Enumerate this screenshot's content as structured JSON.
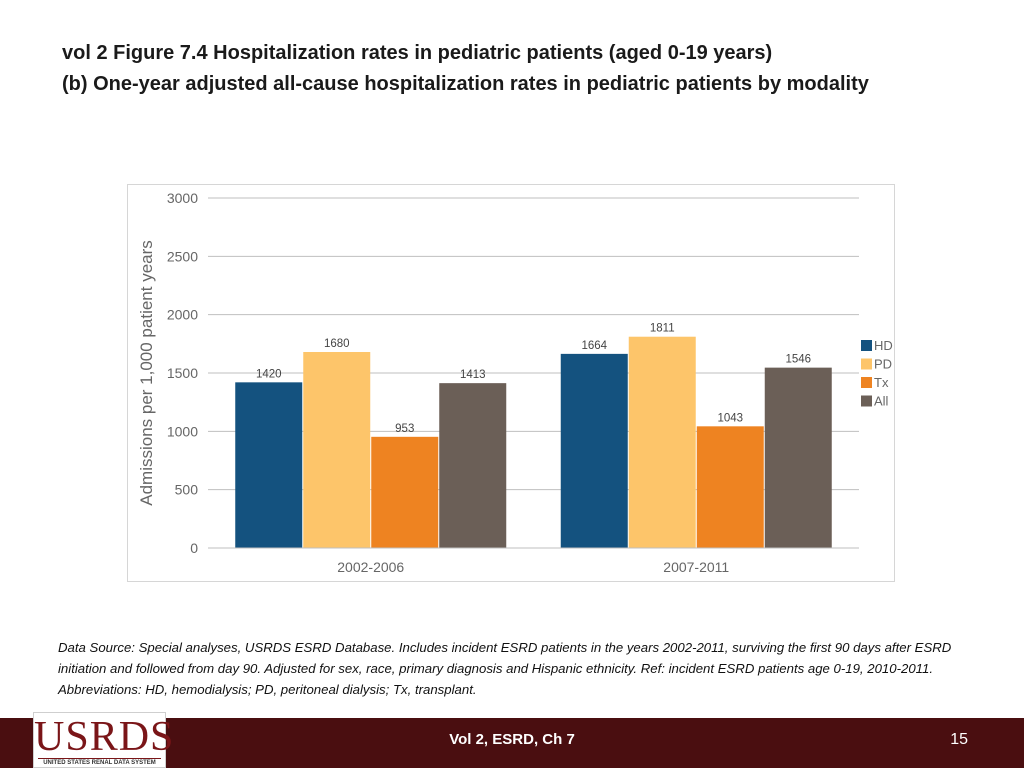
{
  "slide": {
    "title_line1": "vol 2 Figure 7.4 Hospitalization rates in pediatric patients (aged 0-19 years)",
    "title_line2": "(b) One-year adjusted all-cause hospitalization rates in pediatric patients by modality",
    "source_note": "Data Source: Special analyses, USRDS ESRD Database. Includes incident ESRD patients in the years 2002-2011, surviving the first 90 days after ESRD initiation and followed from day 90. Adjusted for sex, race, primary diagnosis and Hispanic ethnicity. Ref: incident ESRD patients age 0-19, 2010-2011. Abbreviations: HD, hemodialysis; PD, peritoneal dialysis; Tx, transplant.",
    "footer_text": "Vol 2, ESRD, Ch 7",
    "page_number": "15",
    "logo_text": "USRDS",
    "logo_subtext": "UNITED STATES RENAL DATA SYSTEM"
  },
  "chart_data": {
    "type": "bar",
    "title": "",
    "xlabel": "",
    "ylabel": "Admissions per 1,000 patient years",
    "ylim": [
      0,
      3000
    ],
    "yticks": [
      0,
      500,
      1000,
      1500,
      2000,
      2500,
      3000
    ],
    "categories": [
      "2002-2006",
      "2007-2011"
    ],
    "series": [
      {
        "name": "HD",
        "color": "#14527f",
        "values": [
          1420,
          1664
        ]
      },
      {
        "name": "PD",
        "color": "#fdc56a",
        "values": [
          1680,
          1811
        ]
      },
      {
        "name": "Tx",
        "color": "#ee8321",
        "values": [
          953,
          1043
        ]
      },
      {
        "name": "All",
        "color": "#6b5f57",
        "values": [
          1413,
          1546
        ]
      }
    ],
    "grid": true,
    "legend_position": "right"
  }
}
